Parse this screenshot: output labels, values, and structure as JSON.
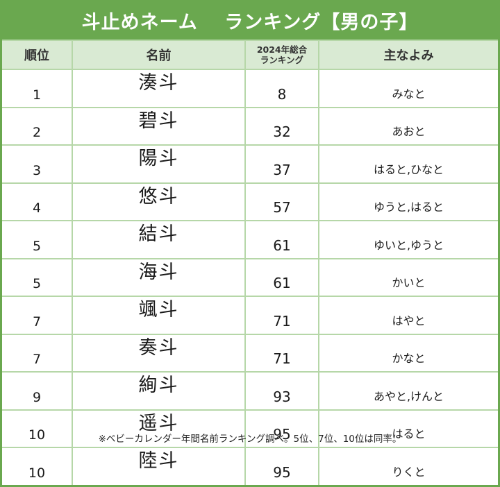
{
  "title": "斗止めネーム　 ランキング【男の子】",
  "headers": {
    "rank": "順位",
    "name": "名前",
    "overall_line1": "2024年総合",
    "overall_line2": "ランキング",
    "reading": "主なよみ"
  },
  "rows": [
    {
      "rank": "1",
      "name": "湊斗",
      "overall": "8",
      "reading": "みなと"
    },
    {
      "rank": "2",
      "name": "碧斗",
      "overall": "32",
      "reading": "あおと"
    },
    {
      "rank": "3",
      "name": "陽斗",
      "overall": "37",
      "reading": "はると,ひなと"
    },
    {
      "rank": "4",
      "name": "悠斗",
      "overall": "57",
      "reading": "ゆうと,はると"
    },
    {
      "rank": "5",
      "name": "結斗",
      "overall": "61",
      "reading": "ゆいと,ゆうと"
    },
    {
      "rank": "5",
      "name": "海斗",
      "overall": "61",
      "reading": "かいと"
    },
    {
      "rank": "7",
      "name": "颯斗",
      "overall": "71",
      "reading": "はやと"
    },
    {
      "rank": "7",
      "name": "奏斗",
      "overall": "71",
      "reading": "かなと"
    },
    {
      "rank": "9",
      "name": "絢斗",
      "overall": "93",
      "reading": "あやと,けんと"
    },
    {
      "rank": "10",
      "name": "遥斗",
      "overall": "95",
      "reading": "はると"
    },
    {
      "rank": "10",
      "name": "陸斗",
      "overall": "95",
      "reading": "りくと"
    }
  ],
  "footer": "※ベビーカレンダー年間名前ランキング調べ。5位、7位、10位は同率。",
  "colors": {
    "title_bg": "#6aa84f",
    "header_bg": "#d9ead3",
    "grid": "#b6d7a8"
  }
}
